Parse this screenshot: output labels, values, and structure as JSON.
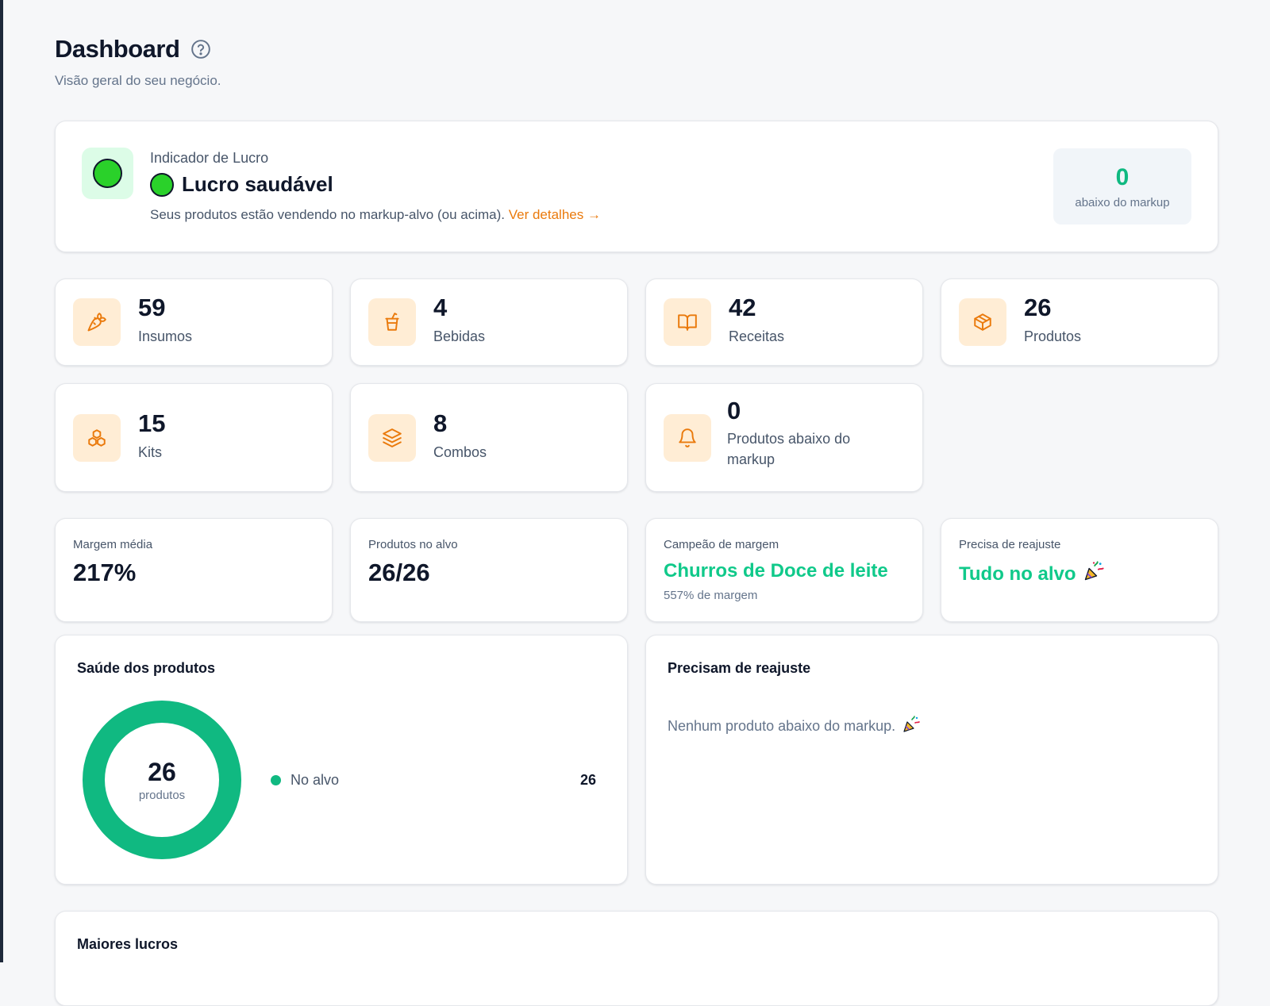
{
  "header": {
    "title": "Dashboard",
    "subtitle": "Visão geral do seu negócio."
  },
  "profit": {
    "eyebrow": "Indicador de Lucro",
    "status": "Lucro saudável",
    "description": "Seus produtos estão vendendo no markup-alvo (ou acima).",
    "link": "Ver detalhes →",
    "below_value": "0",
    "below_label": "abaixo do markup",
    "status_color": "#2ad12a"
  },
  "stats": [
    {
      "value": "59",
      "label": "Insumos",
      "icon": "carrot-icon"
    },
    {
      "value": "4",
      "label": "Bebidas",
      "icon": "drink-cup-icon"
    },
    {
      "value": "42",
      "label": "Receitas",
      "icon": "book-open-icon"
    },
    {
      "value": "26",
      "label": "Produtos",
      "icon": "package-icon"
    },
    {
      "value": "15",
      "label": "Kits",
      "icon": "boxes-icon"
    },
    {
      "value": "8",
      "label": "Combos",
      "icon": "layers-icon"
    },
    {
      "value": "0",
      "label": "Produtos abaixo do markup",
      "icon": "bell-icon"
    }
  ],
  "kpis": {
    "margin_label": "Margem média",
    "margin_value": "217%",
    "on_target_label": "Produtos no alvo",
    "on_target_value": "26/26",
    "champion_label": "Campeão de margem",
    "champion_value": "Churros de Doce de leite",
    "champion_sub": "557% de margem",
    "readjust_label": "Precisa de reajuste",
    "readjust_value": "Tudo no alvo"
  },
  "health": {
    "title": "Saúde dos produtos",
    "total": "26",
    "unit": "produtos",
    "legend_label": "No alvo",
    "legend_value": "26",
    "on_target_fraction": 1.0,
    "color": "#10b981"
  },
  "readjust_panel": {
    "title": "Precisam de reajuste",
    "message": "Nenhum produto abaixo do markup."
  },
  "top_profits": {
    "title": "Maiores lucros"
  },
  "colors": {
    "accent_orange": "#ea7a0c",
    "accent_green": "#10b981",
    "icon_bg": "#ffedd5"
  }
}
